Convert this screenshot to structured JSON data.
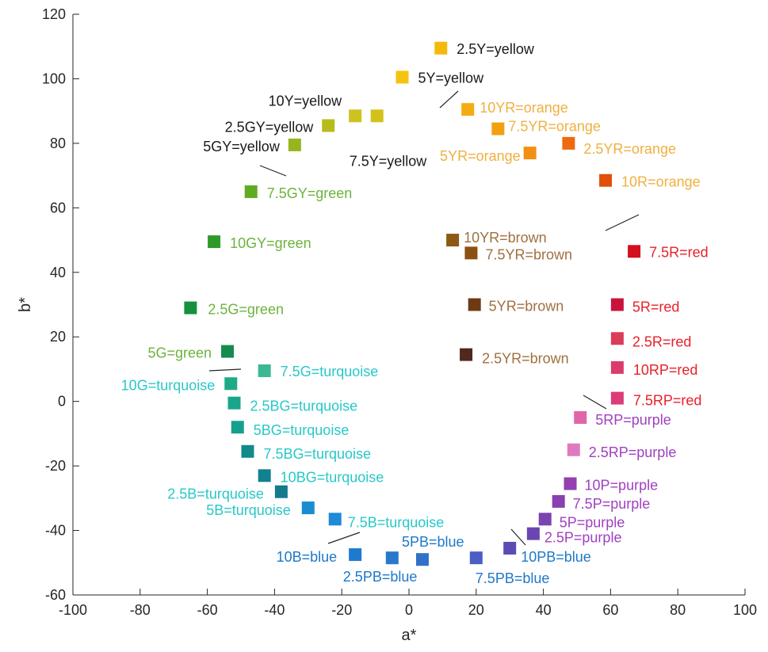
{
  "chart_data": {
    "type": "scatter",
    "title": "",
    "xlabel": "a*",
    "ylabel": "b*",
    "xlim": [
      -100,
      100
    ],
    "ylim": [
      -60,
      120
    ],
    "xticks": [
      "-100",
      "-80",
      "-60",
      "-40",
      "-20",
      "0",
      "20",
      "40",
      "60",
      "80",
      "100"
    ],
    "yticks": [
      "-60",
      "-40",
      "-20",
      "0",
      "20",
      "40",
      "60",
      "80",
      "100",
      "120"
    ],
    "grid": false,
    "points": [
      {
        "label": "2.5Y=yellow",
        "x": 9.5,
        "y": 109.5,
        "color": "#f5b90a",
        "label_color": "#1a1a1a"
      },
      {
        "label": "5Y=yellow",
        "x": -2,
        "y": 100.5,
        "color": "#f5c40e",
        "label_color": "#1a1a1a"
      },
      {
        "label": "7.5Y=yellow",
        "x": -9.5,
        "y": 88.5,
        "color": "#d4c11a",
        "label_color": "#1a1a1a"
      },
      {
        "label": "10Y=yellow",
        "x": -16,
        "y": 88.5,
        "color": "#cdc21e",
        "label_color": "#1a1a1a"
      },
      {
        "label": "2.5GY=yellow",
        "x": -24,
        "y": 85.5,
        "color": "#b8bb1c",
        "label_color": "#1a1a1a"
      },
      {
        "label": "5GY=yellow",
        "x": -34,
        "y": 79.5,
        "color": "#96b51e",
        "label_color": "#1a1a1a"
      },
      {
        "label": "7.5GY=green",
        "x": -47,
        "y": 65,
        "color": "#5fac24",
        "label_color": "#6cb33c"
      },
      {
        "label": "10GY=green",
        "x": -58,
        "y": 49.5,
        "color": "#2f9a2a",
        "label_color": "#6cb33c"
      },
      {
        "label": "2.5G=green",
        "x": -65,
        "y": 29,
        "color": "#14913c",
        "label_color": "#6cb33c"
      },
      {
        "label": "5G=green",
        "x": -54,
        "y": 15.5,
        "color": "#148c4e",
        "label_color": "#6cb33c"
      },
      {
        "label": "7.5G=turquoise",
        "x": -43,
        "y": 9.5,
        "color": "#3cb894",
        "label_color": "#28c8c8"
      },
      {
        "label": "10G=turquoise",
        "x": -53,
        "y": 5.5,
        "color": "#1eaa86",
        "label_color": "#28c8c8"
      },
      {
        "label": "2.5BG=turquoise",
        "x": -52,
        "y": -0.5,
        "color": "#1aa58a",
        "label_color": "#28c8c8"
      },
      {
        "label": "5BG=turquoise",
        "x": -51,
        "y": -8,
        "color": "#14a08c",
        "label_color": "#28c8c8"
      },
      {
        "label": "7.5BG=turquoise",
        "x": -48,
        "y": -15.5,
        "color": "#12898a",
        "label_color": "#28c8c8"
      },
      {
        "label": "10BG=turquoise",
        "x": -43,
        "y": -23,
        "color": "#128290",
        "label_color": "#28c8c8"
      },
      {
        "label": "2.5B=turquoise",
        "x": -38,
        "y": -28,
        "color": "#147a8c",
        "label_color": "#28c8c8"
      },
      {
        "label": "5B=turquoise",
        "x": -30,
        "y": -33,
        "color": "#1a8cd2",
        "label_color": "#28c8c8"
      },
      {
        "label": "7.5B=turquoise",
        "x": -22,
        "y": -36.5,
        "color": "#1e8ad8",
        "label_color": "#28c8c8"
      },
      {
        "label": "10B=blue",
        "x": -16,
        "y": -47.5,
        "color": "#1e7ad0",
        "label_color": "#1e78c8"
      },
      {
        "label": "2.5PB=blue",
        "x": -5,
        "y": -48.5,
        "color": "#2878cc",
        "label_color": "#1e78c8"
      },
      {
        "label": "5PB=blue",
        "x": 4,
        "y": -49,
        "color": "#3270c8",
        "label_color": "#1e78c8"
      },
      {
        "label": "7.5PB=blue",
        "x": 20,
        "y": -48.5,
        "color": "#4a5ec4",
        "label_color": "#1e78c8"
      },
      {
        "label": "10PB=blue",
        "x": 30,
        "y": -45.5,
        "color": "#5a4cb4",
        "label_color": "#1e78c8"
      },
      {
        "label": "2.5P=purple",
        "x": 37,
        "y": -41,
        "color": "#6a46b0",
        "label_color": "#a040c0"
      },
      {
        "label": "5P=purple",
        "x": 40.5,
        "y": -36.5,
        "color": "#7a44b0",
        "label_color": "#a040c0"
      },
      {
        "label": "7.5P=purple",
        "x": 44.5,
        "y": -31,
        "color": "#8a40b0",
        "label_color": "#a040c0"
      },
      {
        "label": "10P=purple",
        "x": 48,
        "y": -25.5,
        "color": "#9440b0",
        "label_color": "#a040c0"
      },
      {
        "label": "2.5RP=purple",
        "x": 49,
        "y": -15,
        "color": "#e07ac0",
        "label_color": "#a040c0"
      },
      {
        "label": "5RP=purple",
        "x": 51,
        "y": -5,
        "color": "#e066a8",
        "label_color": "#a040c0"
      },
      {
        "label": "7.5RP=red",
        "x": 62,
        "y": 1,
        "color": "#dc3c78",
        "label_color": "#e8202a"
      },
      {
        "label": "10RP=red",
        "x": 62,
        "y": 10.5,
        "color": "#dc3c6a",
        "label_color": "#e8202a"
      },
      {
        "label": "2.5R=red",
        "x": 62,
        "y": 19.5,
        "color": "#dc3c5a",
        "label_color": "#e8202a"
      },
      {
        "label": "5R=red",
        "x": 62,
        "y": 30,
        "color": "#c8143c",
        "label_color": "#e8202a"
      },
      {
        "label": "7.5R=red",
        "x": 67,
        "y": 46.5,
        "color": "#d2101e",
        "label_color": "#e8202a"
      },
      {
        "label": "10R=orange",
        "x": 58.5,
        "y": 68.5,
        "color": "#e0500a",
        "label_color": "#f0b040"
      },
      {
        "label": "2.5YR=orange",
        "x": 47.5,
        "y": 80,
        "color": "#ee6a10",
        "label_color": "#f0b040"
      },
      {
        "label": "5YR=orange",
        "x": 36,
        "y": 77,
        "color": "#f29014",
        "label_color": "#f0b040"
      },
      {
        "label": "7.5YR=orange",
        "x": 26.5,
        "y": 84.5,
        "color": "#f2a010",
        "label_color": "#f0b040"
      },
      {
        "label": "10YR=orange",
        "x": 17.5,
        "y": 90.5,
        "color": "#f4ac10",
        "label_color": "#f0b040"
      },
      {
        "label": "10YR=brown",
        "x": 13,
        "y": 50,
        "color": "#8c5a14",
        "label_color": "#a07040"
      },
      {
        "label": "7.5YR=brown",
        "x": 18.5,
        "y": 46,
        "color": "#8c5014",
        "label_color": "#a07040"
      },
      {
        "label": "5YR=brown",
        "x": 19.5,
        "y": 30,
        "color": "#6e3a14",
        "label_color": "#a07040"
      },
      {
        "label": "2.5YR=brown",
        "x": 17,
        "y": 14.5,
        "color": "#50281e",
        "label_color": "#a07040"
      }
    ]
  }
}
